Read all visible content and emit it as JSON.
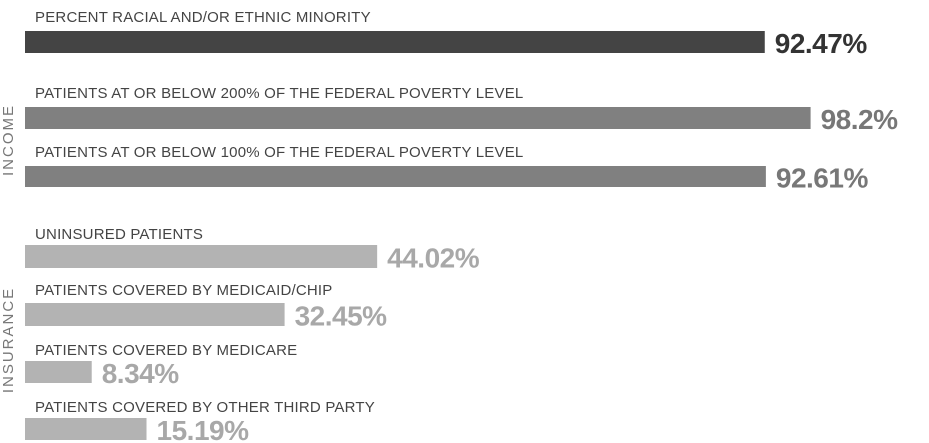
{
  "chart_data": {
    "type": "bar",
    "orientation": "horizontal",
    "categories": [
      "PERCENT RACIAL AND/OR ETHNIC MINORITY",
      "PATIENTS AT OR BELOW 200% OF THE FEDERAL POVERTY LEVEL",
      "PATIENTS AT OR BELOW 100% OF THE FEDERAL POVERTY LEVEL",
      "UNINSURED PATIENTS",
      "PATIENTS COVERED BY MEDICAID/CHIP",
      "PATIENTS COVERED BY MEDICARE",
      "PATIENTS COVERED BY OTHER THIRD PARTY"
    ],
    "values": [
      92.47,
      98.2,
      92.61,
      44.02,
      32.45,
      8.34,
      15.19
    ],
    "value_labels": [
      "92.47%",
      "98.2%",
      "92.61%",
      "44.02%",
      "32.45%",
      "8.34%",
      "15.19%"
    ],
    "colors": [
      "#444444",
      "#808080",
      "#808080",
      "#b3b3b3",
      "#b3b3b3",
      "#b3b3b3",
      "#b3b3b3"
    ],
    "label_colors": [
      "#333333",
      "#777777",
      "#777777",
      "#a8a8a8",
      "#a8a8a8",
      "#a8a8a8",
      "#a8a8a8"
    ],
    "group_labels": [
      "INCOME",
      "INSURANCE"
    ],
    "xlim": [
      0,
      100
    ]
  }
}
